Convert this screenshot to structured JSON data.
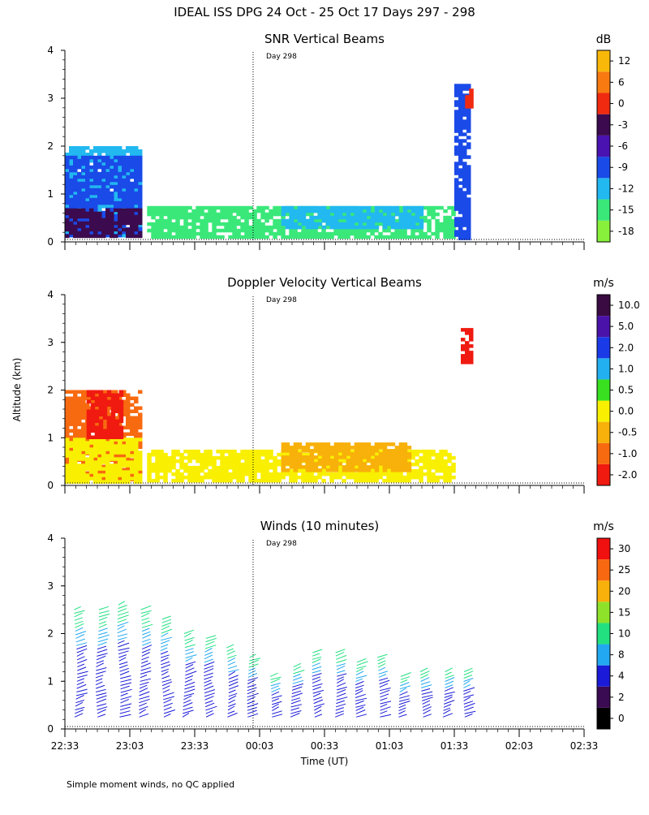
{
  "figure": {
    "title": "IDEAL ISS DPG  24 Oct - 25 Oct 17 Days 297 - 298",
    "ylabel": "Altitude (km)",
    "xlabel": "Time (UT)",
    "footnote": "Simple moment winds, no QC applied"
  },
  "chart_data": [
    {
      "type": "heatmap",
      "title": "SNR Vertical Beams",
      "xlabel": "Time (UT)",
      "ylabel": "Altitude (km)",
      "x_tick_labels": [
        "22:33",
        "23:03",
        "23:33",
        "00:03",
        "00:33",
        "01:03",
        "01:33",
        "02:03",
        "02:33"
      ],
      "ylim": [
        0,
        4
      ],
      "y_ticks": [
        0,
        1,
        2,
        3,
        4
      ],
      "annotation": "Day 298",
      "colorbar": {
        "unit": "dB",
        "labels": [
          "-18",
          "-15",
          "-12",
          "-9",
          "-6",
          "-3",
          "0",
          "6",
          "12"
        ],
        "colors": [
          "#88f03a",
          "#3ae87a",
          "#22b8f0",
          "#1a4ae8",
          "#4a12b0",
          "#3c0a4e",
          "#f02a10",
          "#f87a10",
          "#f8b80a"
        ]
      },
      "regions": [
        {
          "x": [
            0,
            35
          ],
          "y": [
            0.15,
            2.0
          ],
          "level": "-12"
        },
        {
          "x": [
            0,
            35
          ],
          "y": [
            0.15,
            1.8
          ],
          "level": "-9"
        },
        {
          "x": [
            0,
            35
          ],
          "y": [
            0.15,
            0.7
          ],
          "level": "-3"
        },
        {
          "x": [
            38,
            180
          ],
          "y": [
            0.1,
            0.75
          ],
          "level": "-15"
        },
        {
          "x": [
            100,
            165
          ],
          "y": [
            0.3,
            0.75
          ],
          "level": "-12"
        },
        {
          "x": [
            180,
            187
          ],
          "y": [
            0.1,
            3.3
          ],
          "level": "-9"
        },
        {
          "x": [
            185,
            187
          ],
          "y": [
            2.8,
            3.2
          ],
          "level": "0"
        }
      ]
    },
    {
      "type": "heatmap",
      "title": "Doppler Velocity Vertical Beams",
      "xlabel": "Time (UT)",
      "ylabel": "Altitude (km)",
      "x_tick_labels": [
        "22:33",
        "23:03",
        "23:33",
        "00:03",
        "00:33",
        "01:03",
        "01:33",
        "02:03",
        "02:33"
      ],
      "ylim": [
        0,
        4
      ],
      "y_ticks": [
        0,
        1,
        2,
        3,
        4
      ],
      "annotation": "Day 298",
      "colorbar": {
        "unit": "m/s",
        "labels": [
          "-2.0",
          "-1.0",
          "-0.5",
          "0.0",
          "0.5",
          "1.0",
          "2.0",
          "5.0",
          "10.0"
        ],
        "colors": [
          "#f01a10",
          "#f86a10",
          "#f8b00a",
          "#f8f000",
          "#38e020",
          "#22b0f0",
          "#1a3ae8",
          "#4a12a8",
          "#3a0a42"
        ]
      },
      "regions": [
        {
          "x": [
            0,
            35
          ],
          "y": [
            0.1,
            2.0
          ],
          "level": "-1.0"
        },
        {
          "x": [
            0,
            35
          ],
          "y": [
            0.1,
            1.0
          ],
          "level": "0.0"
        },
        {
          "x": [
            10,
            25
          ],
          "y": [
            1.0,
            2.0
          ],
          "level": "-2.0"
        },
        {
          "x": [
            38,
            180
          ],
          "y": [
            0.1,
            0.75
          ],
          "level": "0.0"
        },
        {
          "x": [
            100,
            160
          ],
          "y": [
            0.3,
            0.9
          ],
          "level": "-0.5"
        },
        {
          "x": [
            183,
            187
          ],
          "y": [
            2.6,
            3.3
          ],
          "level": "-2.0"
        }
      ]
    },
    {
      "type": "scatter",
      "title": "Winds (10 minutes)",
      "xlabel": "Time (UT)",
      "ylabel": "Altitude (km)",
      "x_tick_labels": [
        "22:33",
        "23:03",
        "23:33",
        "00:03",
        "00:33",
        "01:03",
        "01:33",
        "02:03",
        "02:33"
      ],
      "ylim": [
        0,
        4
      ],
      "y_ticks": [
        0,
        1,
        2,
        3,
        4
      ],
      "annotation": "Day 298",
      "colorbar": {
        "unit": "m/s",
        "labels": [
          "0",
          "2",
          "4",
          "8",
          "10",
          "15",
          "20",
          "25",
          "30"
        ],
        "colors": [
          "#000000",
          "#3a0a52",
          "#1a1ad8",
          "#22a8f0",
          "#22e080",
          "#8ee22a",
          "#f8b00a",
          "#f86810",
          "#f01010"
        ]
      },
      "profiles": [
        {
          "t": 5,
          "top": 2.5
        },
        {
          "t": 15,
          "top": 2.5
        },
        {
          "t": 25,
          "top": 2.6
        },
        {
          "t": 35,
          "top": 2.5
        },
        {
          "t": 45,
          "top": 2.3
        },
        {
          "t": 55,
          "top": 2.0
        },
        {
          "t": 65,
          "top": 1.9
        },
        {
          "t": 75,
          "top": 1.7
        },
        {
          "t": 85,
          "top": 1.5
        },
        {
          "t": 95,
          "top": 1.1
        },
        {
          "t": 105,
          "top": 1.3
        },
        {
          "t": 115,
          "top": 1.6
        },
        {
          "t": 125,
          "top": 1.6
        },
        {
          "t": 135,
          "top": 1.4
        },
        {
          "t": 145,
          "top": 1.5
        },
        {
          "t": 155,
          "top": 1.1
        },
        {
          "t": 165,
          "top": 1.2
        },
        {
          "t": 175,
          "top": 1.2
        },
        {
          "t": 185,
          "top": 1.2
        }
      ]
    }
  ]
}
